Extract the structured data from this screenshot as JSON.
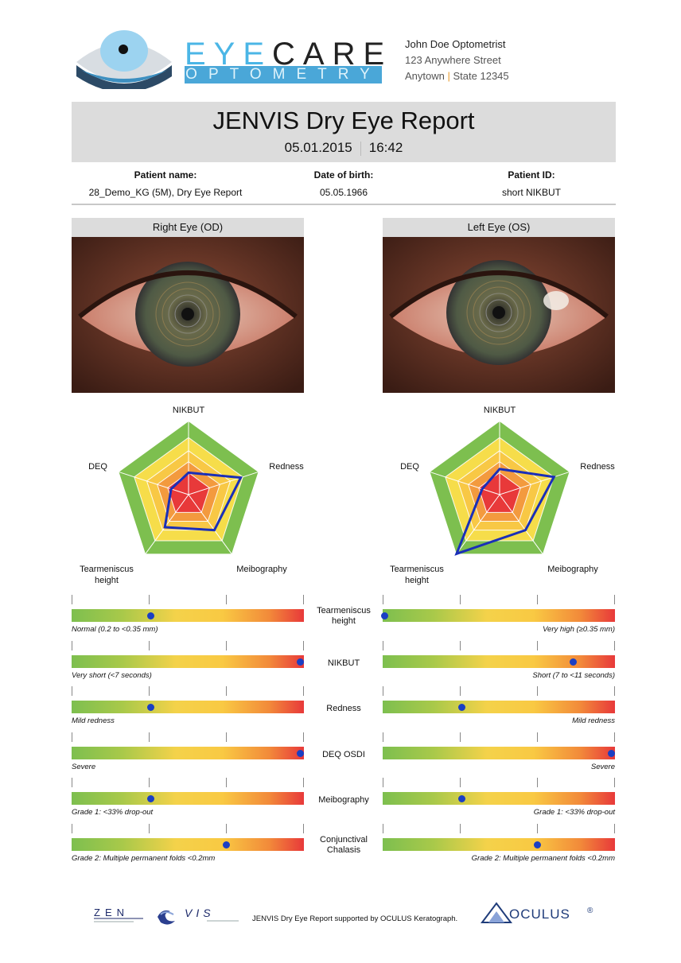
{
  "practice": {
    "brand_eye": "EYE",
    "brand_care": "CARE",
    "brand_sub": "OPTOMETRY",
    "name": "John Doe Optometrist",
    "street": "123 Anywhere Street",
    "town": "Anytown",
    "sep": "|",
    "state": "State 12345"
  },
  "report": {
    "title": "JENVIS Dry Eye Report",
    "date": "05.01.2015",
    "time": "16:42"
  },
  "patient": {
    "name_label": "Patient name:",
    "name_value": "28_Demo_KG (5M), Dry Eye Report",
    "dob_label": "Date of birth:",
    "dob_value": "05.05.1966",
    "id_label": "Patient ID:",
    "id_value": "short NIKBUT"
  },
  "eyes": {
    "right_title": "Right Eye (OD)",
    "left_title": "Left Eye (OS)"
  },
  "radar": {
    "axes": [
      "NIKBUT",
      "Redness",
      "Meibography",
      "Teameniscus\nheight",
      "DEQ"
    ],
    "right_values": [
      0.3,
      0.75,
      0.6,
      0.55,
      0.25
    ],
    "left_values": [
      0.35,
      0.78,
      0.6,
      1.0,
      0.25
    ]
  },
  "scales": {
    "colors": {
      "marker": "#1a3fc4",
      "good": "#7dbf4f",
      "mid": "#f4d24a",
      "bad": "#e8393a"
    },
    "rows": [
      {
        "label": "Tearmeniscus\nheight",
        "right_pos": 0.34,
        "right_caption": "Normal (0.2 to <0.35 mm)",
        "left_pos": 0.01,
        "left_caption": "Very high (≥0.35 mm)"
      },
      {
        "label": "NIKBUT",
        "right_pos": 0.985,
        "right_caption": "Very short (<7 seconds)",
        "left_pos": 0.82,
        "left_caption": "Short (7 to <11 seconds)"
      },
      {
        "label": "Redness",
        "right_pos": 0.34,
        "right_caption": "Mild redness",
        "left_pos": 0.34,
        "left_caption": "Mild redness"
      },
      {
        "label": "DEQ OSDI",
        "right_pos": 0.985,
        "right_caption": "Severe",
        "left_pos": 0.985,
        "left_caption": "Severe"
      },
      {
        "label": "Meibography",
        "right_pos": 0.34,
        "right_caption": "Grade 1: <33% drop-out",
        "left_pos": 0.34,
        "left_caption": "Grade 1: <33% drop-out"
      },
      {
        "label": "Conjunctival\nChalasis",
        "right_pos": 0.665,
        "right_caption": "Grade 2: Multiple permanent folds <0.2mm",
        "left_pos": 0.665,
        "left_caption": "Grade 2: Multiple permanent folds <0.2mm"
      }
    ]
  },
  "footer": {
    "text": "JENVIS Dry Eye Report supported by OCULUS Keratograph.",
    "oculus": "OCULUS",
    "reg": "®"
  }
}
